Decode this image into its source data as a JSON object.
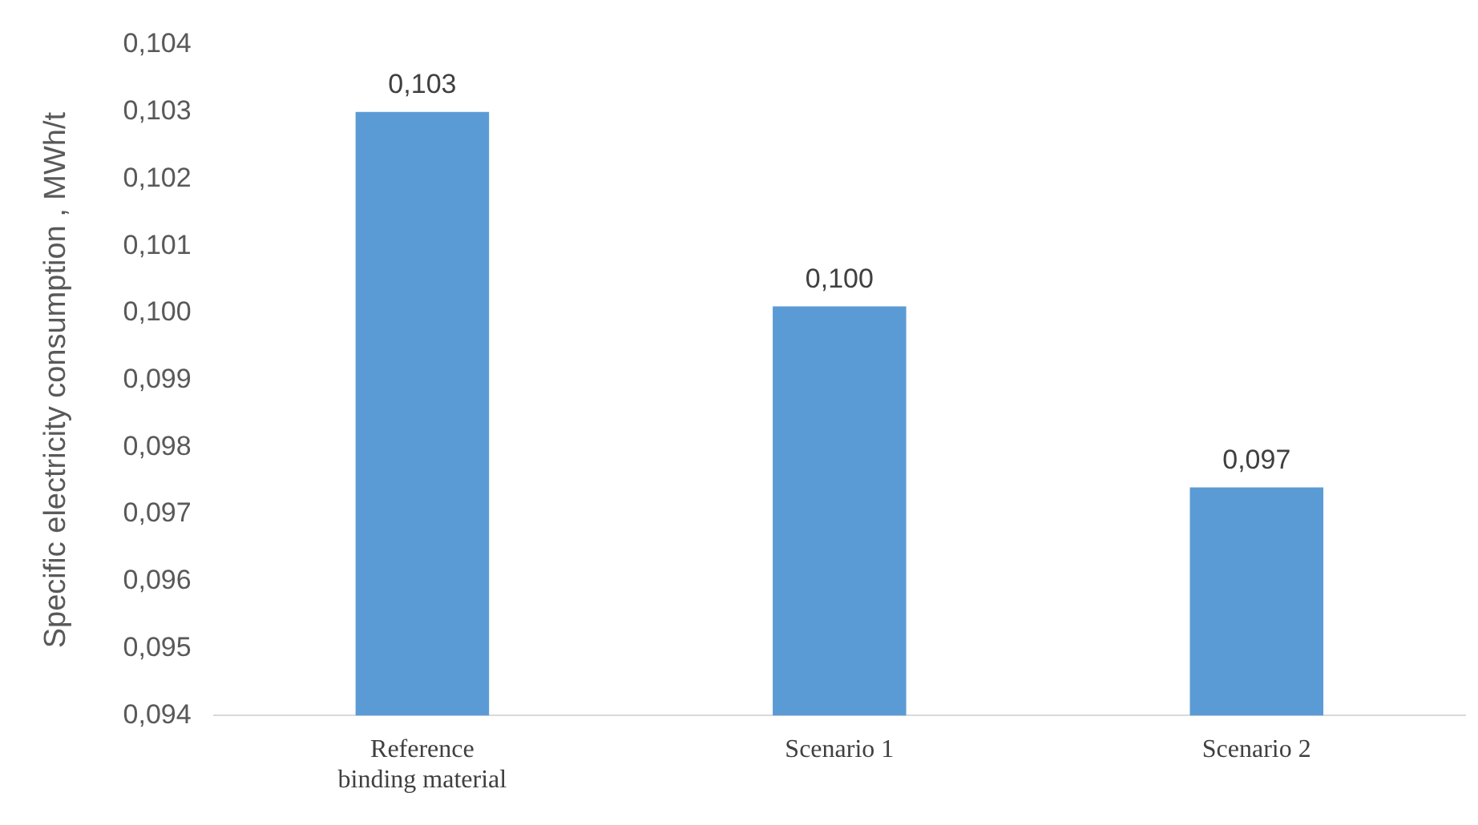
{
  "chart_data": {
    "type": "bar",
    "ylabel": "Specific electricity consumption , MWh/t",
    "categories": [
      "Reference binding material",
      "Scenario 1",
      "Scenario 2"
    ],
    "values": [
      0.103,
      0.1001,
      0.0974
    ],
    "value_labels": [
      "0,103",
      "0,100",
      "0,097"
    ],
    "color": "#5b9bd5",
    "ylim": [
      0.094,
      0.104
    ],
    "yticks": [
      {
        "value": 0.094,
        "label": "0,094"
      },
      {
        "value": 0.095,
        "label": "0,095"
      },
      {
        "value": 0.096,
        "label": "0,096"
      },
      {
        "value": 0.097,
        "label": "0,097"
      },
      {
        "value": 0.098,
        "label": "0,098"
      },
      {
        "value": 0.099,
        "label": "0,099"
      },
      {
        "value": 0.1,
        "label": "0,100"
      },
      {
        "value": 0.101,
        "label": "0,101"
      },
      {
        "value": 0.102,
        "label": "0,102"
      },
      {
        "value": 0.103,
        "label": "0,103"
      },
      {
        "value": 0.104,
        "label": "0,104"
      }
    ],
    "grid": false,
    "legend": false
  }
}
